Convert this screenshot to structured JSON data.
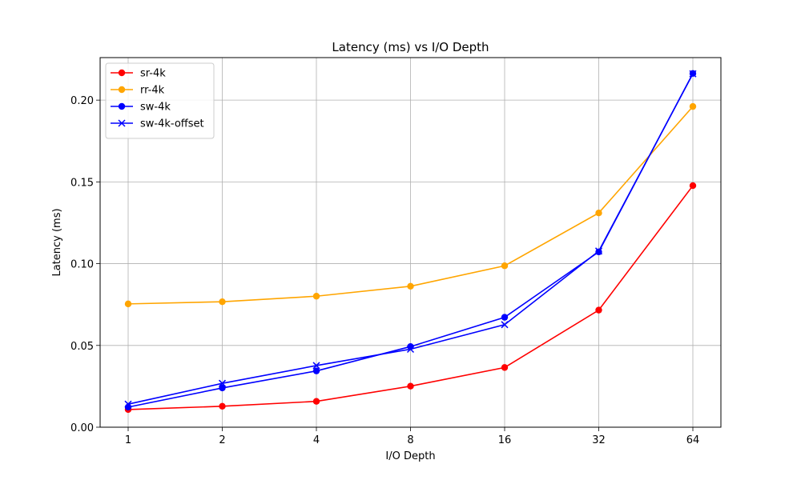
{
  "chart_data": {
    "type": "line",
    "title": "Latency (ms) vs I/O Depth",
    "xlabel": "I/O Depth",
    "ylabel": "Latency (ms)",
    "categories": [
      "1",
      "2",
      "4",
      "8",
      "16",
      "32",
      "64"
    ],
    "x_scale": "log2",
    "ylim": [
      0,
      0.226
    ],
    "yticks": [
      "0.00",
      "0.05",
      "0.10",
      "0.15",
      "0.20"
    ],
    "ytick_values": [
      0,
      0.05,
      0.1,
      0.15,
      0.2
    ],
    "grid": true,
    "legend_position": "upper-left",
    "series": [
      {
        "name": "sr-4k",
        "color": "#ff0000",
        "marker": "circle",
        "values": [
          0.0108,
          0.0128,
          0.0158,
          0.0251,
          0.0365,
          0.0716,
          0.1477
        ]
      },
      {
        "name": "rr-4k",
        "color": "#ffa500",
        "marker": "circle",
        "values": [
          0.0754,
          0.0767,
          0.0801,
          0.0862,
          0.0987,
          0.131,
          0.1961
        ]
      },
      {
        "name": "sw-4k",
        "color": "#0000ff",
        "marker": "circle",
        "values": [
          0.0123,
          0.024,
          0.0344,
          0.0493,
          0.0672,
          0.1072,
          0.2163
        ]
      },
      {
        "name": "sw-4k-offset",
        "color": "#0000ff",
        "marker": "x",
        "values": [
          0.0141,
          0.0268,
          0.0377,
          0.0477,
          0.0627,
          0.1077,
          0.2161
        ]
      }
    ]
  }
}
